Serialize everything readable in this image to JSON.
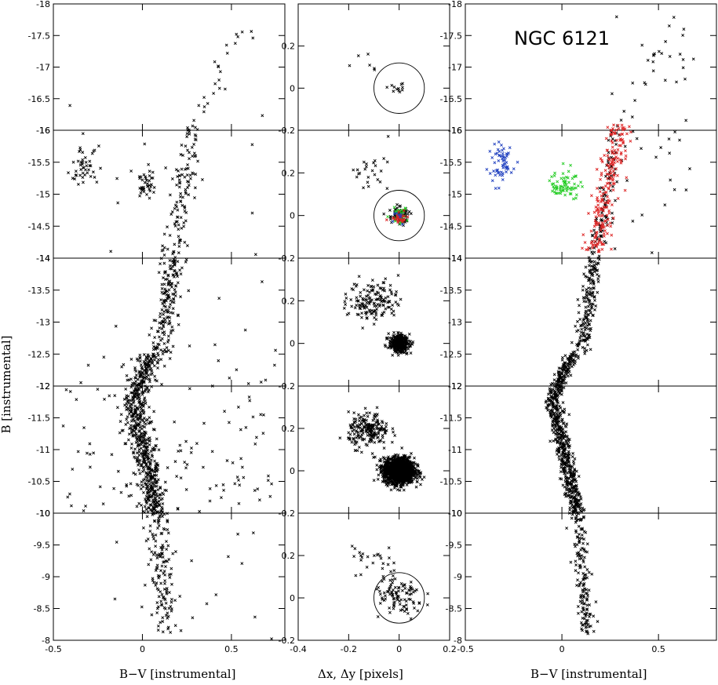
{
  "figure": {
    "title": "NGC 6121",
    "xlabel_cmd": "B−V [instrumental]",
    "xlabel_mid": "Δx, Δy [pixels]",
    "ylabel": "B [instrumental]"
  },
  "chart_data": [
    {
      "id": "left-cmd",
      "type": "scatter",
      "xlabel": "B−V [instrumental]",
      "ylabel": "B [instrumental]",
      "xlim": [
        -0.5,
        0.8
      ],
      "ylim": [
        -18,
        -8
      ],
      "y_inverted_top": "-18",
      "x_ticks": [
        -0.5,
        0,
        0.5
      ],
      "x_tick_labels": [
        "-0.5",
        "0",
        "0.5"
      ],
      "y_tick_labels_per_row": [
        [
          "-18",
          "-17.5",
          "-17",
          "-16.5",
          "-16"
        ],
        [
          "-16",
          "-15.5",
          "-15",
          "-14.5",
          "-14"
        ],
        [
          "-14",
          "-13.5",
          "-13",
          "-12.5",
          "-12"
        ],
        [
          "-12",
          "-11.5",
          "-11",
          "-10.5",
          "-10"
        ],
        [
          "-10",
          "-9.5",
          "-9",
          "-8.5",
          "-8"
        ]
      ],
      "rows": 5,
      "marker": "x",
      "features": {
        "main_sequence": [
          [
            0.12,
            -8.5
          ],
          [
            0.08,
            -10
          ],
          [
            0.0,
            -11
          ],
          [
            -0.05,
            -11.8
          ],
          [
            -0.02,
            -12.3
          ]
        ],
        "subgiant_branch": [
          [
            -0.02,
            -12.3
          ],
          [
            0.05,
            -12.6
          ],
          [
            0.12,
            -12.8
          ]
        ],
        "red_giant_branch": [
          [
            0.12,
            -12.8
          ],
          [
            0.15,
            -13.5
          ],
          [
            0.18,
            -14.2
          ],
          [
            0.22,
            -15
          ],
          [
            0.28,
            -15.8
          ],
          [
            0.32,
            -16.3
          ],
          [
            0.4,
            -16.8
          ],
          [
            0.5,
            -17.2
          ],
          [
            0.62,
            -17.7
          ]
        ],
        "horizontal_branch_blue": [
          [
            -0.3,
            -15.4
          ],
          [
            -0.35,
            -15.6
          ],
          [
            -0.25,
            -15.5
          ]
        ],
        "horizontal_branch_red": [
          [
            -0.02,
            -15.2
          ],
          [
            0.02,
            -15.1
          ],
          [
            -0.05,
            -15.0
          ]
        ]
      }
    },
    {
      "id": "middle-displacement",
      "type": "scatter",
      "xlabel": "Δx, Δy [pixels]",
      "xlim": [
        -0.4,
        0.2
      ],
      "x_ticks": [
        -0.4,
        -0.2,
        0,
        0.2
      ],
      "x_tick_labels": [
        "-0.4",
        "-0.2",
        "0",
        "0.2"
      ],
      "ylim_per_row": [
        -0.2,
        0.4
      ],
      "y_tick_labels": [
        "-0.2",
        "0",
        "0.2"
      ],
      "rows": 5,
      "circles": [
        {
          "row": 0,
          "center": [
            0,
            0
          ],
          "radius": 0.1
        },
        {
          "row": 1,
          "center": [
            0,
            0
          ],
          "radius": 0.1
        },
        {
          "row": 4,
          "center": [
            0,
            0
          ],
          "radius": 0.1
        }
      ],
      "clusters": [
        {
          "row": 0,
          "center": [
            0,
            0
          ],
          "spread": 0.02,
          "n": 12
        },
        {
          "row": 0,
          "center": [
            -0.15,
            0.12
          ],
          "spread": 0.04,
          "n": 6
        },
        {
          "row": 1,
          "center": [
            0,
            0
          ],
          "spread": 0.02,
          "n": 80
        },
        {
          "row": 1,
          "center": [
            -0.12,
            0.2
          ],
          "spread": 0.04,
          "n": 25
        },
        {
          "row": 2,
          "center": [
            0,
            0
          ],
          "spread": 0.02,
          "n": 300
        },
        {
          "row": 2,
          "center": [
            -0.1,
            0.2
          ],
          "spread": 0.05,
          "n": 150
        },
        {
          "row": 3,
          "center": [
            0,
            0
          ],
          "spread": 0.03,
          "n": 1500
        },
        {
          "row": 3,
          "center": [
            -0.12,
            0.19
          ],
          "spread": 0.04,
          "n": 200
        },
        {
          "row": 4,
          "center": [
            0,
            0
          ],
          "spread": 0.05,
          "n": 100
        },
        {
          "row": 4,
          "center": [
            -0.1,
            0.18
          ],
          "spread": 0.05,
          "n": 25
        }
      ]
    },
    {
      "id": "right-cmd-selected",
      "type": "scatter",
      "xlabel": "B−V [instrumental]",
      "xlim": [
        -0.5,
        0.8
      ],
      "ylim": [
        -18,
        -8
      ],
      "x_ticks": [
        -0.5,
        0,
        0.5
      ],
      "x_tick_labels": [
        "-0.5",
        "0",
        "0.5"
      ],
      "rows": 5,
      "color_groups": [
        {
          "name": "blue horizontal branch",
          "color": "#1f3fbf",
          "center": [
            -0.32,
            -15.5
          ]
        },
        {
          "name": "red horizontal branch",
          "color": "#22cc22",
          "center": [
            0.02,
            -15.15
          ]
        },
        {
          "name": "red giant branch",
          "color": "#dd2222",
          "center": [
            0.2,
            -15.0
          ]
        }
      ]
    }
  ],
  "colors": {
    "blue": "#1f3fbf",
    "green": "#22cc22",
    "red": "#dd2222",
    "black": "#000000"
  }
}
